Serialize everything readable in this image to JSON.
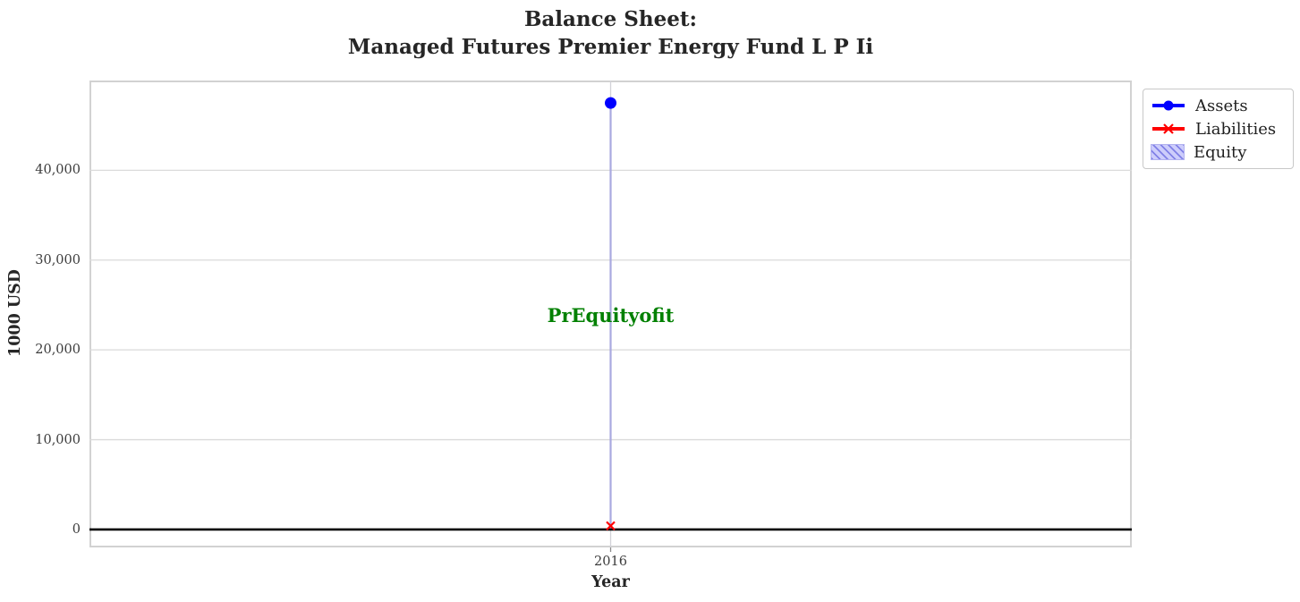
{
  "title": "Balance Sheet:\nManaged Futures Premier Energy Fund L P Ii",
  "chart_data": {
    "type": "line",
    "title": "Balance Sheet:\nManaged Futures Premier Energy Fund L P Ii",
    "xlabel": "Year",
    "ylabel": "1000 USD",
    "categories": [
      "2016"
    ],
    "x_positions": [
      0.5
    ],
    "series": [
      {
        "name": "Assets",
        "values": [
          47500
        ],
        "color": "#0000ff",
        "marker": "circle",
        "style": "line"
      },
      {
        "name": "Liabilities",
        "values": [
          400
        ],
        "color": "#ff0000",
        "marker": "x",
        "style": "line"
      },
      {
        "name": "Equity",
        "values": [
          47100
        ],
        "color": "#cdcdfb",
        "hatch_color": "#8a8ae6",
        "style": "hatched-area"
      }
    ],
    "ylim": [
      -2000,
      50000
    ],
    "yticks": [
      0,
      10000,
      20000,
      30000,
      40000
    ],
    "ytick_labels": [
      "0",
      "10,000",
      "20,000",
      "30,000",
      "40,000"
    ],
    "grid": true,
    "grid_color": "#dadada",
    "vgrid_color": "#d2d2d8",
    "equity_edge_color": "#a9a9e0",
    "zero_line": {
      "y": 0,
      "color": "#000000"
    },
    "legend_position": "upper-right-outside",
    "annotation": {
      "text": "PrEquityofit",
      "x": 0.5,
      "y": 23800,
      "color": "#008000"
    }
  }
}
